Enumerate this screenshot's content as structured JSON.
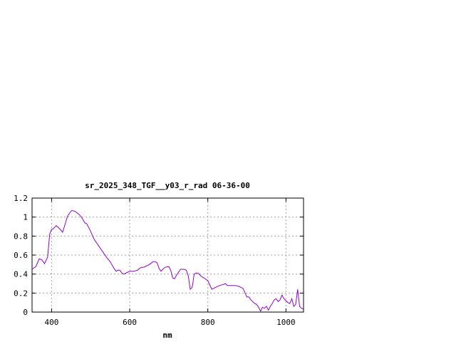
{
  "chart_data": {
    "type": "line",
    "title": "sr_2025_348_TGF__y03_r_rad 06-36-00",
    "xlabel": "nm",
    "ylabel": "",
    "xlim": [
      350,
      1045
    ],
    "ylim": [
      0,
      1.2
    ],
    "x_ticks": [
      400,
      600,
      800,
      1000
    ],
    "x_tick_labels": [
      "400",
      "600",
      "800",
      "1000"
    ],
    "y_ticks": [
      0,
      0.2,
      0.4,
      0.6,
      0.8,
      1,
      1.2
    ],
    "y_tick_labels": [
      "0",
      "0.2",
      "0.4",
      "0.6",
      "0.8",
      "1",
      "1.2"
    ],
    "grid": true,
    "legend": "none",
    "series_color": "#9400D3",
    "series": [
      {
        "x": [
          350,
          360,
          368,
          375,
          382,
          390,
          395,
          400,
          405,
          412,
          420,
          428,
          435,
          440,
          447,
          452,
          460,
          470,
          478,
          485,
          490,
          495,
          500,
          505,
          510,
          515,
          520,
          530,
          540,
          550,
          560,
          565,
          570,
          575,
          580,
          585,
          590,
          595,
          600,
          610,
          620,
          625,
          630,
          635,
          640,
          650,
          660,
          665,
          670,
          675,
          680,
          685,
          690,
          700,
          705,
          710,
          715,
          720,
          730,
          740,
          745,
          750,
          755,
          760,
          765,
          770,
          775,
          780,
          785,
          790,
          800,
          810,
          815,
          820,
          830,
          840,
          845,
          850,
          860,
          870,
          880,
          890,
          900,
          905,
          910,
          915,
          920,
          925,
          930,
          935,
          940,
          945,
          950,
          955,
          960,
          965,
          970,
          975,
          980,
          985,
          990,
          995,
          1000,
          1005,
          1010,
          1015,
          1020,
          1025,
          1030,
          1035,
          1040,
          1045
        ],
        "values": [
          0.45,
          0.48,
          0.56,
          0.55,
          0.51,
          0.58,
          0.82,
          0.87,
          0.88,
          0.91,
          0.88,
          0.84,
          0.93,
          1.0,
          1.05,
          1.07,
          1.06,
          1.03,
          0.99,
          0.94,
          0.93,
          0.89,
          0.85,
          0.8,
          0.76,
          0.73,
          0.7,
          0.64,
          0.58,
          0.53,
          0.46,
          0.43,
          0.44,
          0.44,
          0.41,
          0.4,
          0.41,
          0.42,
          0.43,
          0.43,
          0.44,
          0.46,
          0.47,
          0.47,
          0.48,
          0.5,
          0.53,
          0.53,
          0.52,
          0.46,
          0.43,
          0.45,
          0.47,
          0.48,
          0.44,
          0.36,
          0.35,
          0.39,
          0.45,
          0.45,
          0.44,
          0.38,
          0.24,
          0.26,
          0.4,
          0.41,
          0.41,
          0.39,
          0.37,
          0.36,
          0.33,
          0.24,
          0.25,
          0.26,
          0.28,
          0.29,
          0.3,
          0.28,
          0.28,
          0.28,
          0.27,
          0.25,
          0.16,
          0.16,
          0.13,
          0.11,
          0.09,
          0.08,
          0.05,
          0.01,
          0.05,
          0.04,
          0.06,
          0.02,
          0.06,
          0.09,
          0.13,
          0.14,
          0.11,
          0.13,
          0.18,
          0.14,
          0.12,
          0.1,
          0.09,
          0.14,
          0.06,
          0.08,
          0.24,
          0.06,
          0.04,
          0.03
        ]
      }
    ]
  }
}
